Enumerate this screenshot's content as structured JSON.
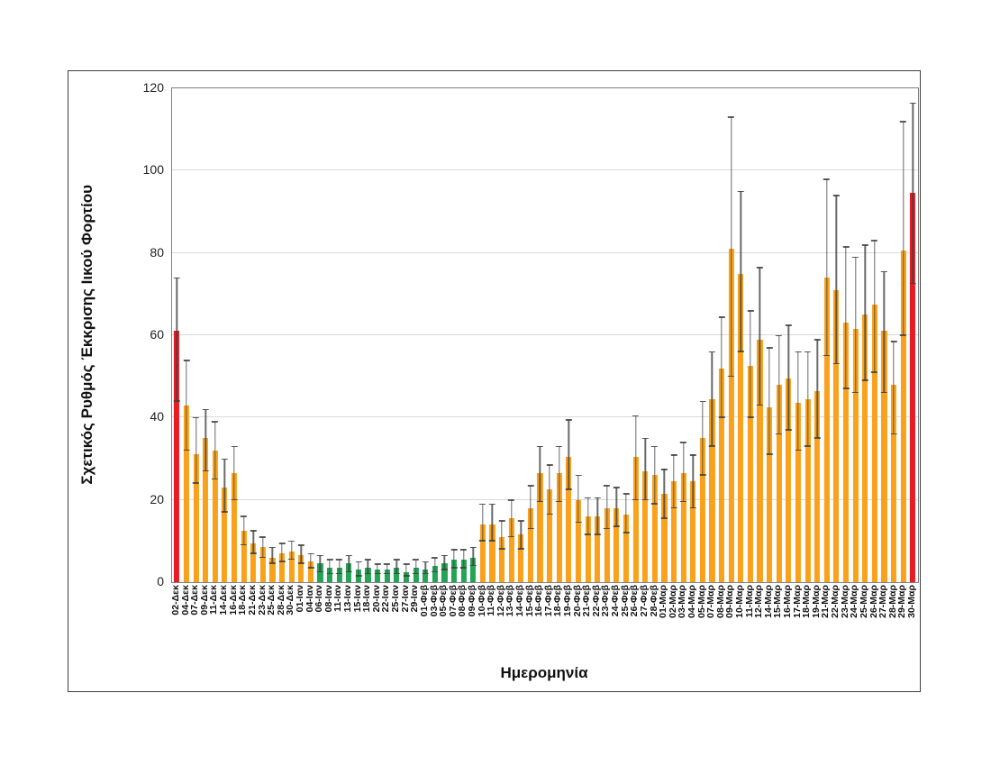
{
  "figure": {
    "background": "#FFFFFF",
    "frame_border_color": "#3F3F3F"
  },
  "chart_data": {
    "type": "bar",
    "title": "",
    "xlabel": "Ημερομηνία",
    "ylabel": "Σχετικός Ρυθμός Έκκρισης Ιικού Φορτίου",
    "ylim": [
      0,
      120
    ],
    "yticks": [
      0,
      20,
      40,
      60,
      80,
      100,
      120
    ],
    "grid": true,
    "legend": "none",
    "error_bars": true,
    "colors": {
      "default_bar": "#F9A11B",
      "low_period_bar": "#23A455",
      "highlight_bar": "#E81A23",
      "error_bar": "#4A4A4A",
      "gridline": "#DADADA",
      "axis_line": "#7F7F7F"
    },
    "points": [
      {
        "label": "02-Δεκ",
        "value": 61,
        "lo": 44,
        "hi": 74,
        "series": "highlight"
      },
      {
        "label": "04-Δεκ",
        "value": 43,
        "lo": 32,
        "hi": 54,
        "series": "default"
      },
      {
        "label": "07-Δεκ",
        "value": 31,
        "lo": 24,
        "hi": 40,
        "series": "default"
      },
      {
        "label": "09-Δεκ",
        "value": 35,
        "lo": 27,
        "hi": 42,
        "series": "default"
      },
      {
        "label": "11-Δεκ",
        "value": 32,
        "lo": 25,
        "hi": 39,
        "series": "default"
      },
      {
        "label": "14-Δεκ",
        "value": 23,
        "lo": 17,
        "hi": 30,
        "series": "default"
      },
      {
        "label": "16-Δεκ",
        "value": 26.5,
        "lo": 20,
        "hi": 33,
        "series": "default"
      },
      {
        "label": "18-Δεκ",
        "value": 12.5,
        "lo": 9,
        "hi": 16,
        "series": "default"
      },
      {
        "label": "21-Δεκ",
        "value": 9.5,
        "lo": 7,
        "hi": 12.5,
        "series": "default"
      },
      {
        "label": "23-Δεκ",
        "value": 8.5,
        "lo": 6,
        "hi": 11,
        "series": "default"
      },
      {
        "label": "25-Δεκ",
        "value": 6,
        "lo": 4.5,
        "hi": 8.5,
        "series": "default"
      },
      {
        "label": "28-Δεκ",
        "value": 7,
        "lo": 5,
        "hi": 9.5,
        "series": "default"
      },
      {
        "label": "30-Δεκ",
        "value": 7.5,
        "lo": 5.5,
        "hi": 10,
        "series": "default"
      },
      {
        "label": "01-Ιαν",
        "value": 6.5,
        "lo": 4.5,
        "hi": 9,
        "series": "default"
      },
      {
        "label": "04-Ιαν",
        "value": 5,
        "lo": 3.5,
        "hi": 7,
        "series": "default"
      },
      {
        "label": "06-Ιαν",
        "value": 4.5,
        "lo": 2.5,
        "hi": 6.5,
        "series": "low"
      },
      {
        "label": "08-Ιαν",
        "value": 3.5,
        "lo": 2,
        "hi": 5.5,
        "series": "low"
      },
      {
        "label": "11-Ιαν",
        "value": 3.5,
        "lo": 2,
        "hi": 5.5,
        "series": "low"
      },
      {
        "label": "13-Ιαν",
        "value": 4.5,
        "lo": 2.5,
        "hi": 6.5,
        "series": "low"
      },
      {
        "label": "15-Ιαν",
        "value": 3,
        "lo": 1.5,
        "hi": 5,
        "series": "low"
      },
      {
        "label": "18-Ιαν",
        "value": 3.5,
        "lo": 2,
        "hi": 5.5,
        "series": "low"
      },
      {
        "label": "20-Ιαν",
        "value": 3,
        "lo": 2,
        "hi": 4.5,
        "series": "low"
      },
      {
        "label": "22-Ιαν",
        "value": 3,
        "lo": 2,
        "hi": 4.5,
        "series": "low"
      },
      {
        "label": "25-Ιαν",
        "value": 3.5,
        "lo": 2,
        "hi": 5.5,
        "series": "low"
      },
      {
        "label": "27-Ιαν",
        "value": 2.5,
        "lo": 1.5,
        "hi": 4.5,
        "series": "low"
      },
      {
        "label": "29-Ιαν",
        "value": 3.5,
        "lo": 2,
        "hi": 5.5,
        "series": "low"
      },
      {
        "label": "01-Φεβ",
        "value": 3,
        "lo": 2,
        "hi": 5,
        "series": "low"
      },
      {
        "label": "03-Φεβ",
        "value": 4,
        "lo": 2.5,
        "hi": 6,
        "series": "low"
      },
      {
        "label": "05-Φεβ",
        "value": 4.5,
        "lo": 3,
        "hi": 6.5,
        "series": "low"
      },
      {
        "label": "07-Φεβ",
        "value": 5.5,
        "lo": 3.5,
        "hi": 8,
        "series": "low"
      },
      {
        "label": "08-Φεβ",
        "value": 5.5,
        "lo": 3.5,
        "hi": 8,
        "series": "low"
      },
      {
        "label": "09-Φεβ",
        "value": 6,
        "lo": 4,
        "hi": 8.5,
        "series": "low"
      },
      {
        "label": "10-Φεβ",
        "value": 14,
        "lo": 10,
        "hi": 19,
        "series": "default"
      },
      {
        "label": "11-Φεβ",
        "value": 14,
        "lo": 10,
        "hi": 19,
        "series": "default"
      },
      {
        "label": "12-Φεβ",
        "value": 11,
        "lo": 8,
        "hi": 15,
        "series": "default"
      },
      {
        "label": "13-Φεβ",
        "value": 15.5,
        "lo": 11,
        "hi": 20,
        "series": "default"
      },
      {
        "label": "14-Φεβ",
        "value": 11.5,
        "lo": 8,
        "hi": 15,
        "series": "default"
      },
      {
        "label": "15-Φεβ",
        "value": 18,
        "lo": 13,
        "hi": 23.5,
        "series": "default"
      },
      {
        "label": "16-Φεβ",
        "value": 26.5,
        "lo": 19.5,
        "hi": 33,
        "series": "default"
      },
      {
        "label": "17-Φεβ",
        "value": 22.5,
        "lo": 16.5,
        "hi": 28.5,
        "series": "default"
      },
      {
        "label": "18-Φεβ",
        "value": 26.5,
        "lo": 19.5,
        "hi": 33,
        "series": "default"
      },
      {
        "label": "19-Φεβ",
        "value": 30.5,
        "lo": 22.5,
        "hi": 39.5,
        "series": "default"
      },
      {
        "label": "20-Φεβ",
        "value": 20,
        "lo": 14.5,
        "hi": 26,
        "series": "default"
      },
      {
        "label": "21-Φεβ",
        "value": 16,
        "lo": 11.5,
        "hi": 20.5,
        "series": "default"
      },
      {
        "label": "22-Φεβ",
        "value": 16,
        "lo": 11.5,
        "hi": 20.5,
        "series": "default"
      },
      {
        "label": "23-Φεβ",
        "value": 18,
        "lo": 13,
        "hi": 23.5,
        "series": "default"
      },
      {
        "label": "24-Φεβ",
        "value": 18,
        "lo": 13.5,
        "hi": 23,
        "series": "default"
      },
      {
        "label": "25-Φεβ",
        "value": 16.5,
        "lo": 12,
        "hi": 21.5,
        "series": "default"
      },
      {
        "label": "26-Φεβ",
        "value": 30.5,
        "lo": 20,
        "hi": 40.5,
        "series": "default"
      },
      {
        "label": "27-Φεβ",
        "value": 27,
        "lo": 20,
        "hi": 35,
        "series": "default"
      },
      {
        "label": "28-Φεβ",
        "value": 26,
        "lo": 19,
        "hi": 33,
        "series": "default"
      },
      {
        "label": "01-Μαρ",
        "value": 21.5,
        "lo": 15.5,
        "hi": 27.5,
        "series": "default"
      },
      {
        "label": "02-Μαρ",
        "value": 24.5,
        "lo": 18,
        "hi": 31,
        "series": "default"
      },
      {
        "label": "03-Μαρ",
        "value": 26.5,
        "lo": 19.5,
        "hi": 34,
        "series": "default"
      },
      {
        "label": "04-Μαρ",
        "value": 24.5,
        "lo": 18,
        "hi": 31,
        "series": "default"
      },
      {
        "label": "05-Μαρ",
        "value": 35,
        "lo": 26,
        "hi": 44,
        "series": "default"
      },
      {
        "label": "07-Μαρ",
        "value": 44.5,
        "lo": 33,
        "hi": 56,
        "series": "default"
      },
      {
        "label": "08-Μαρ",
        "value": 52,
        "lo": 40,
        "hi": 64.5,
        "series": "default"
      },
      {
        "label": "09-Μαρ",
        "value": 81,
        "lo": 50,
        "hi": 113,
        "series": "default"
      },
      {
        "label": "10-Μαρ",
        "value": 75,
        "lo": 56,
        "hi": 95,
        "series": "default"
      },
      {
        "label": "11-Μαρ",
        "value": 52.5,
        "lo": 40,
        "hi": 66,
        "series": "default"
      },
      {
        "label": "12-Μαρ",
        "value": 59,
        "lo": 43,
        "hi": 76.5,
        "series": "default"
      },
      {
        "label": "14-Μαρ",
        "value": 42.5,
        "lo": 31,
        "hi": 57,
        "series": "default"
      },
      {
        "label": "15-Μαρ",
        "value": 48,
        "lo": 36,
        "hi": 60,
        "series": "default"
      },
      {
        "label": "16-Μαρ",
        "value": 49.5,
        "lo": 37,
        "hi": 62.5,
        "series": "default"
      },
      {
        "label": "17-Μαρ",
        "value": 43.5,
        "lo": 32,
        "hi": 56,
        "series": "default"
      },
      {
        "label": "18-Μαρ",
        "value": 44.5,
        "lo": 33,
        "hi": 56,
        "series": "default"
      },
      {
        "label": "19-Μαρ",
        "value": 46.5,
        "lo": 35,
        "hi": 59,
        "series": "default"
      },
      {
        "label": "21-Μαρ",
        "value": 74,
        "lo": 55,
        "hi": 98,
        "series": "default"
      },
      {
        "label": "22-Μαρ",
        "value": 71,
        "lo": 53,
        "hi": 94,
        "series": "default"
      },
      {
        "label": "23-Μαρ",
        "value": 63,
        "lo": 47,
        "hi": 81.5,
        "series": "default"
      },
      {
        "label": "24-Μαρ",
        "value": 61.5,
        "lo": 46,
        "hi": 79,
        "series": "default"
      },
      {
        "label": "25-Μαρ",
        "value": 65,
        "lo": 49,
        "hi": 82,
        "series": "default"
      },
      {
        "label": "26-Μαρ",
        "value": 67.5,
        "lo": 51,
        "hi": 83,
        "series": "default"
      },
      {
        "label": "27-Μαρ",
        "value": 61,
        "lo": 46,
        "hi": 75.5,
        "series": "default"
      },
      {
        "label": "28-Μαρ",
        "value": 48,
        "lo": 36,
        "hi": 58.5,
        "series": "default"
      },
      {
        "label": "29-Μαρ",
        "value": 80.5,
        "lo": 60,
        "hi": 112,
        "series": "default"
      },
      {
        "label": "30-Μαρ",
        "value": 94.5,
        "lo": 72.5,
        "hi": 116.5,
        "series": "highlight"
      }
    ]
  }
}
